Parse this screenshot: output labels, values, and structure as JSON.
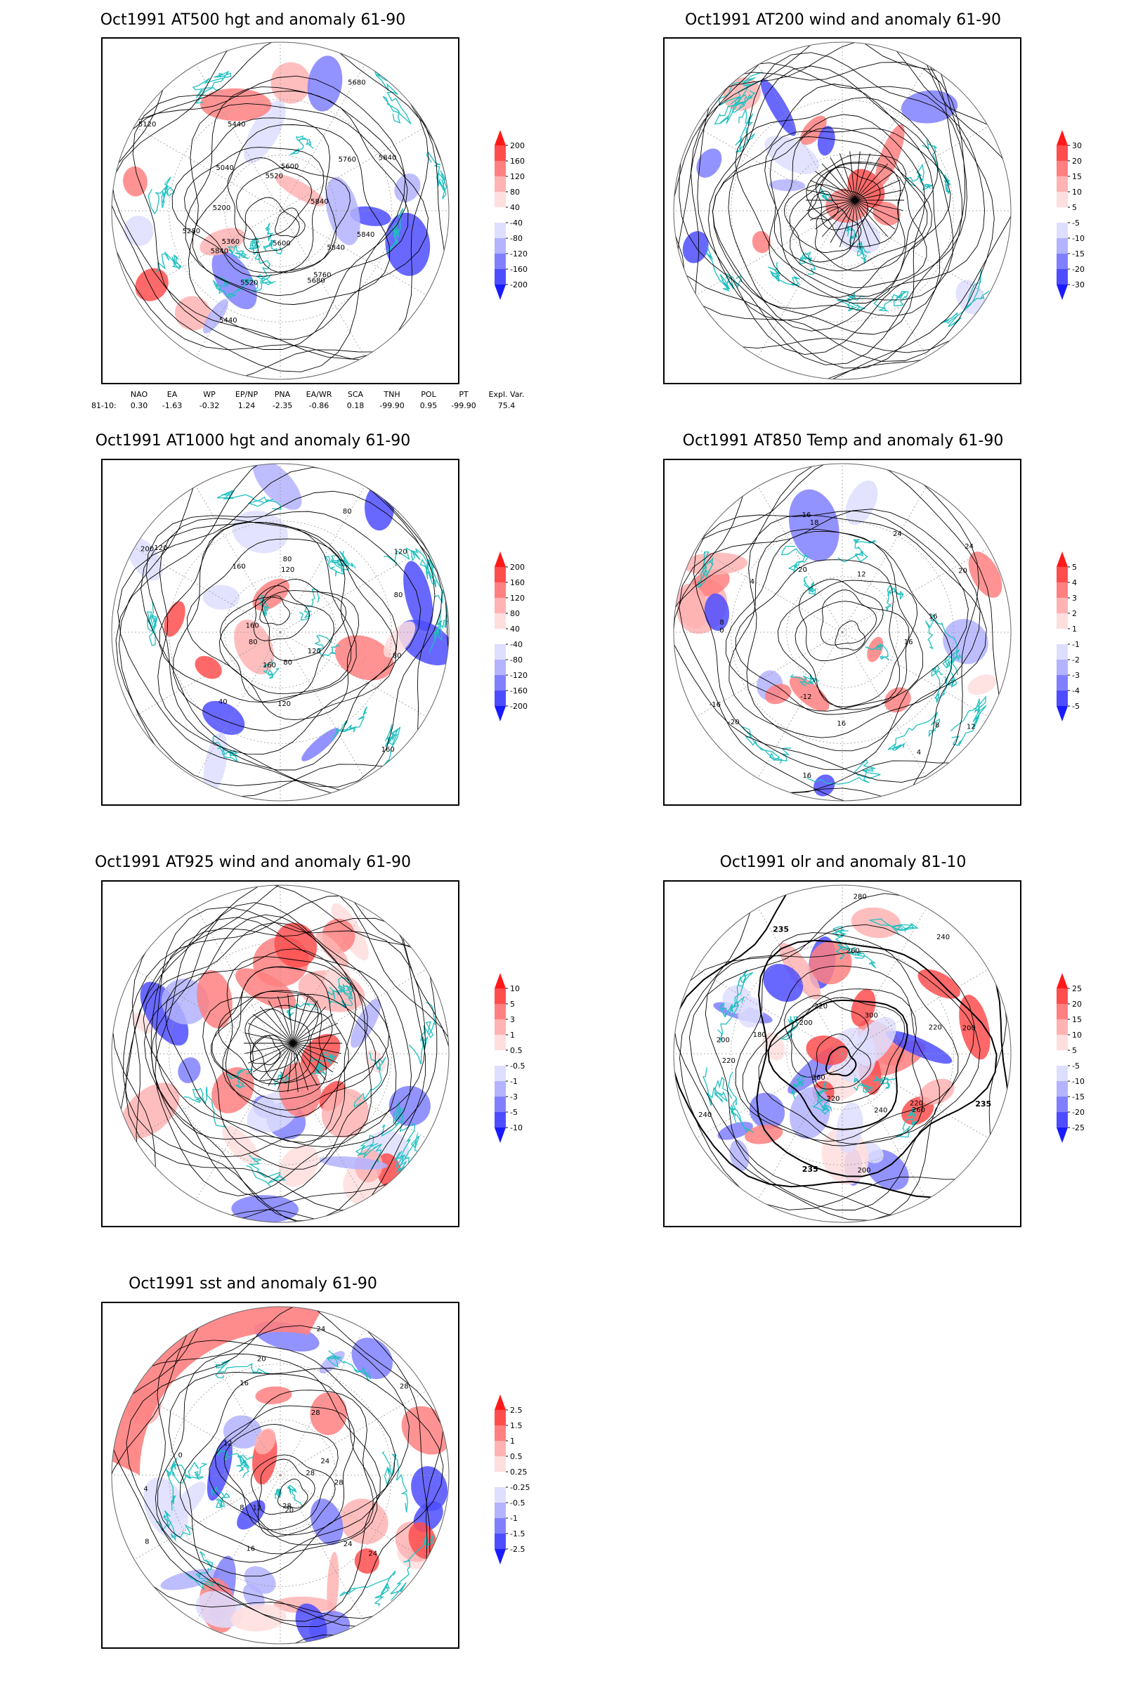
{
  "panels": [
    {
      "id": "p1",
      "title": "Oct1991 AT500 hgt and anomaly 61-90",
      "colorbar": [
        "200",
        "160",
        "120",
        "80",
        "40",
        "-40",
        "-80",
        "-120",
        "-160",
        "-200"
      ],
      "contour_labels": [
        "5840",
        "5840",
        "5760",
        "5680",
        "5600",
        "5520",
        "5440",
        "5840",
        "5360",
        "5280",
        "5200",
        "5120",
        "5040",
        "5440",
        "5520",
        "5600",
        "5680",
        "5760",
        "5840",
        "5840"
      ]
    },
    {
      "id": "p2",
      "title": "Oct1991 AT200 wind and anomaly 61-90",
      "colorbar": [
        "30",
        "20",
        "15",
        "10",
        "5",
        "-5",
        "-10",
        "-15",
        "-20",
        "-30"
      ],
      "contour_labels": []
    },
    {
      "id": "p3",
      "title": "Oct1991 AT1000 hgt and anomaly 61-90",
      "colorbar": [
        "200",
        "160",
        "120",
        "80",
        "40",
        "-40",
        "-80",
        "-120",
        "-160",
        "-200"
      ],
      "contour_labels": [
        "80",
        "120",
        "160",
        "80",
        "120",
        "160",
        "40",
        "80",
        "160",
        "200",
        "120",
        "160",
        "80",
        "120",
        "80",
        "120",
        "80"
      ]
    },
    {
      "id": "p4",
      "title": "Oct1991 AT850 Temp and anomaly 61-90",
      "colorbar": [
        "5",
        "4",
        "3",
        "2",
        "1",
        "-1",
        "-2",
        "-3",
        "-4",
        "-5"
      ],
      "contour_labels": [
        "16",
        "12",
        "8",
        "4",
        "16",
        "16",
        "-12",
        "-20",
        "-16",
        "0",
        "8",
        "4",
        "20",
        "18",
        "16",
        "12",
        "24",
        "24",
        "20",
        "16"
      ]
    },
    {
      "id": "p5",
      "title": "Oct1991 AT925 wind and anomaly 61-90",
      "colorbar": [
        "10",
        "5",
        "3",
        "1",
        "0.5",
        "-0.5",
        "-1",
        "-3",
        "-5",
        "-10"
      ],
      "contour_labels": []
    },
    {
      "id": "p6",
      "title": "Oct1991 olr and anomaly 81-10",
      "colorbar": [
        "25",
        "20",
        "15",
        "10",
        "5",
        "-5",
        "-10",
        "-15",
        "-20",
        "-25"
      ],
      "contour_labels": [
        "235",
        "220",
        "260",
        "240",
        "200",
        "220",
        "235",
        "260",
        "240",
        "220",
        "200",
        "180",
        "200",
        "220",
        "235",
        "260",
        "280",
        "300",
        "240",
        "220",
        "200"
      ]
    },
    {
      "id": "p7",
      "title": "Oct1991 sst and anomaly 61-90",
      "colorbar": [
        "2.5",
        "1.5",
        "1",
        "0.5",
        "0.25",
        "-0.25",
        "-0.5",
        "-1",
        "-1.5",
        "-2.5"
      ],
      "contour_labels": [
        "28",
        "24",
        "24",
        "20",
        "28",
        "16",
        "12",
        "8",
        "8",
        "4",
        "0",
        "12",
        "16",
        "20",
        "24",
        "28",
        "28",
        "24",
        "28"
      ]
    }
  ],
  "indices": {
    "headers": [
      "NAO",
      "EA",
      "WP",
      "EP/NP",
      "PNA",
      "EA/WR",
      "SCA",
      "TNH",
      "POL",
      "PT",
      "Expl. Var."
    ],
    "row_label": "81-10:",
    "values": [
      "0.30",
      "-1.63",
      "-0.32",
      "1.24",
      "-2.35",
      "-0.86",
      "0.18",
      "-99.90",
      "0.95",
      "-99.90",
      "75.4"
    ]
  },
  "colors": {
    "positive": [
      "#ff1a1a",
      "#ff4d4d",
      "#ff8080",
      "#ffb3b3",
      "#ffdede"
    ],
    "negative": [
      "#dedeff",
      "#b3b3ff",
      "#8080ff",
      "#4d4dff",
      "#1a1aff"
    ],
    "coast": "#20c0c0",
    "contour": "#000000"
  }
}
